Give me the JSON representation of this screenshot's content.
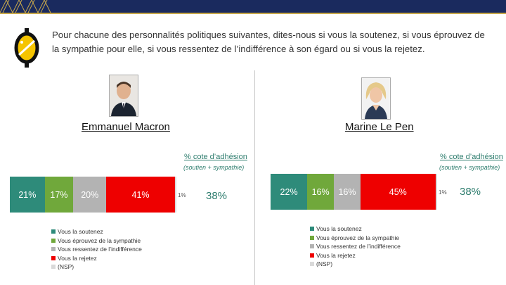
{
  "question": "Pour chacune des personnalités politiques suivantes, dites-nous si vous la soutenez, si vous éprouvez de la sympathie pour elle, si vous ressentez de l’indifférence à son égard ou si vous la rejetez.",
  "colors": {
    "soutenez": "#2e8b7a",
    "sympathie": "#70a83b",
    "indifference": "#b3b3b3",
    "rejetez": "#ee0000",
    "nsp": "#d9d9d9"
  },
  "chart_data": [
    {
      "type": "bar",
      "name": "Emmanuel Macron",
      "cote_label": "% cote d’adhésion",
      "cote_sub": "(soutien + sympathie)",
      "cote_value": "38%",
      "series": [
        {
          "name": "Vous la soutenez",
          "value": 21,
          "label": "21%"
        },
        {
          "name": "Vous éprouvez de la sympathie",
          "value": 17,
          "label": "17%"
        },
        {
          "name": "Vous ressentez de l’indifférence",
          "value": 20,
          "label": "20%"
        },
        {
          "name": "Vous la rejetez",
          "value": 41,
          "label": "41%"
        },
        {
          "name": "(NSP)",
          "value": 1,
          "label": "1%"
        }
      ]
    },
    {
      "type": "bar",
      "name": "Marine Le Pen",
      "cote_label": "% cote d’adhésion",
      "cote_sub": "(soutien + sympathie)",
      "cote_value": "38%",
      "series": [
        {
          "name": "Vous la soutenez",
          "value": 22,
          "label": "22%"
        },
        {
          "name": "Vous éprouvez de la sympathie",
          "value": 16,
          "label": "16%"
        },
        {
          "name": "Vous ressentez de l’indifférence",
          "value": 16,
          "label": "16%"
        },
        {
          "name": "Vous la rejetez",
          "value": 45,
          "label": "45%"
        },
        {
          "name": "(NSP)",
          "value": 1,
          "label": "1%"
        }
      ]
    }
  ],
  "legend": [
    {
      "label": "Vous la soutenez",
      "color": "#2e8b7a"
    },
    {
      "label": "Vous éprouvez de la sympathie",
      "color": "#70a83b"
    },
    {
      "label": "Vous ressentez de l’indifférence",
      "color": "#b3b3b3"
    },
    {
      "label": "Vous la rejetez",
      "color": "#ee0000"
    },
    {
      "label": "(NSP)",
      "color": "#d9d9d9"
    }
  ]
}
